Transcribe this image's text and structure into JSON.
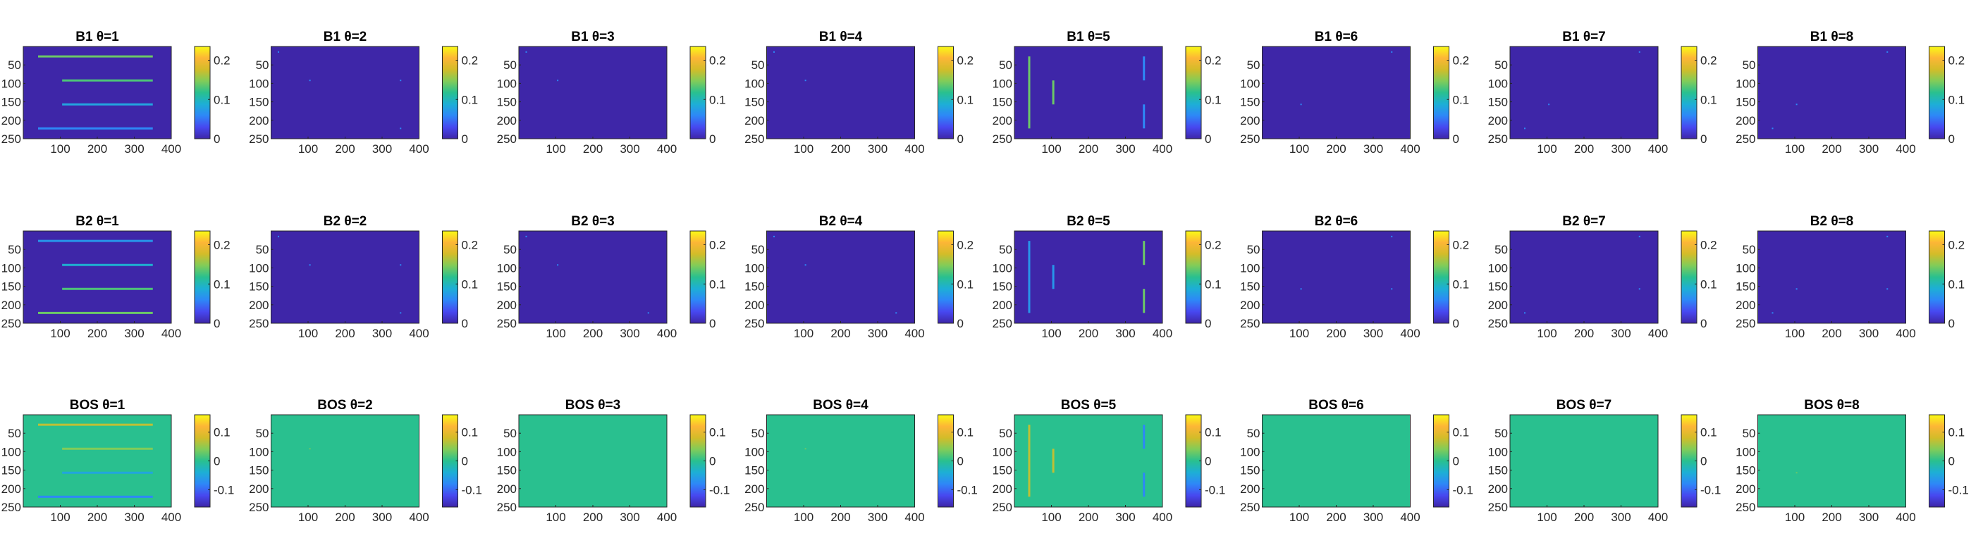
{
  "figure": {
    "rows": [
      {
        "prefix": "B1",
        "panels": [
          "B1 θ=1",
          "B1 θ=2",
          "B1 θ=3",
          "B1 θ=4",
          "B1 θ=5",
          "B1 θ=6",
          "B1 θ=7",
          "B1 θ=8"
        ],
        "colorbar_ticks": [
          "0.2",
          "0.1",
          "0"
        ],
        "colorbar_values": [
          0.2,
          0.1,
          0
        ],
        "clim": [
          0,
          0.235
        ]
      },
      {
        "prefix": "B2",
        "panels": [
          "B2 θ=1",
          "B2 θ=2",
          "B2 θ=3",
          "B2 θ=4",
          "B2 θ=5",
          "B2 θ=6",
          "B2 θ=7",
          "B2 θ=8"
        ],
        "colorbar_ticks": [
          "0.2",
          "0.1",
          "0"
        ],
        "colorbar_values": [
          0.2,
          0.1,
          0
        ],
        "clim": [
          0,
          0.235
        ]
      },
      {
        "prefix": "BOS",
        "panels": [
          "BOS θ=1",
          "BOS θ=2",
          "BOS θ=3",
          "BOS θ=4",
          "BOS θ=5",
          "BOS θ=6",
          "BOS θ=7",
          "BOS θ=8"
        ],
        "colorbar_ticks": [
          "0.1",
          "0",
          "-0.1"
        ],
        "colorbar_values": [
          0.1,
          0,
          -0.1
        ],
        "clim": [
          -0.16,
          0.16
        ]
      }
    ],
    "x_ticks": [
      "100",
      "200",
      "300",
      "400"
    ],
    "x_tick_values": [
      100,
      200,
      300,
      400
    ],
    "y_ticks": [
      "50",
      "100",
      "150",
      "200",
      "250"
    ],
    "y_tick_values": [
      50,
      100,
      150,
      200,
      250
    ],
    "xlim": [
      0,
      400
    ],
    "ylim": [
      0,
      250
    ],
    "colormap": "parula",
    "colormap_stops": [
      "#3e26a8",
      "#4748f0",
      "#2e87f7",
      "#1dafd6",
      "#29c08f",
      "#81cc59",
      "#d3bc29",
      "#fdb636",
      "#f9fb15"
    ]
  },
  "chart_data": {
    "type": "heatmap",
    "layout": "3 rows x 8 columns of image panels with colorbars",
    "xlim": [
      0,
      400
    ],
    "ylim": [
      250,
      0
    ],
    "features": [
      {
        "row": 0,
        "panel": 0,
        "kind": "h",
        "y": 27,
        "x0": 40,
        "x1": 350,
        "value": 0.14
      },
      {
        "row": 0,
        "panel": 0,
        "kind": "h",
        "y": 92,
        "x0": 105,
        "x1": 350,
        "value": 0.13
      },
      {
        "row": 0,
        "panel": 0,
        "kind": "h",
        "y": 157,
        "x0": 105,
        "x1": 350,
        "value": 0.08
      },
      {
        "row": 0,
        "panel": 0,
        "kind": "h",
        "y": 222,
        "x0": 40,
        "x1": 350,
        "value": 0.06
      },
      {
        "row": 0,
        "panel": 4,
        "kind": "v",
        "x": 40,
        "y0": 27,
        "y1": 222,
        "value": 0.14
      },
      {
        "row": 0,
        "panel": 4,
        "kind": "v",
        "x": 105,
        "y0": 92,
        "y1": 157,
        "value": 0.14
      },
      {
        "row": 0,
        "panel": 4,
        "kind": "v",
        "x": 350,
        "y0": 27,
        "y1": 92,
        "value": 0.06
      },
      {
        "row": 0,
        "panel": 4,
        "kind": "v",
        "x": 350,
        "y0": 157,
        "y1": 222,
        "value": 0.06
      },
      {
        "row": 1,
        "panel": 0,
        "kind": "h",
        "y": 27,
        "x0": 40,
        "x1": 350,
        "value": 0.07
      },
      {
        "row": 1,
        "panel": 0,
        "kind": "h",
        "y": 92,
        "x0": 105,
        "x1": 350,
        "value": 0.09
      },
      {
        "row": 1,
        "panel": 0,
        "kind": "h",
        "y": 157,
        "x0": 105,
        "x1": 350,
        "value": 0.13
      },
      {
        "row": 1,
        "panel": 0,
        "kind": "h",
        "y": 222,
        "x0": 40,
        "x1": 350,
        "value": 0.14
      },
      {
        "row": 1,
        "panel": 4,
        "kind": "v",
        "x": 40,
        "y0": 27,
        "y1": 222,
        "value": 0.07
      },
      {
        "row": 1,
        "panel": 4,
        "kind": "v",
        "x": 105,
        "y0": 92,
        "y1": 157,
        "value": 0.07
      },
      {
        "row": 1,
        "panel": 4,
        "kind": "v",
        "x": 350,
        "y0": 27,
        "y1": 92,
        "value": 0.14
      },
      {
        "row": 1,
        "panel": 4,
        "kind": "v",
        "x": 350,
        "y0": 157,
        "y1": 222,
        "value": 0.14
      },
      {
        "row": 2,
        "panel": 0,
        "kind": "h",
        "y": 27,
        "x0": 40,
        "x1": 350,
        "value": 0.07
      },
      {
        "row": 2,
        "panel": 0,
        "kind": "h",
        "y": 92,
        "x0": 105,
        "x1": 350,
        "value": 0.04
      },
      {
        "row": 2,
        "panel": 0,
        "kind": "h",
        "y": 157,
        "x0": 105,
        "x1": 350,
        "value": -0.05
      },
      {
        "row": 2,
        "panel": 0,
        "kind": "h",
        "y": 222,
        "x0": 40,
        "x1": 350,
        "value": -0.08
      },
      {
        "row": 2,
        "panel": 4,
        "kind": "v",
        "x": 40,
        "y0": 27,
        "y1": 222,
        "value": 0.07
      },
      {
        "row": 2,
        "panel": 4,
        "kind": "v",
        "x": 105,
        "y0": 92,
        "y1": 157,
        "value": 0.07
      },
      {
        "row": 2,
        "panel": 4,
        "kind": "v",
        "x": 350,
        "y0": 27,
        "y1": 92,
        "value": -0.08
      },
      {
        "row": 2,
        "panel": 4,
        "kind": "v",
        "x": 350,
        "y0": 157,
        "y1": 222,
        "value": -0.08
      }
    ],
    "specks": [
      {
        "row": 0,
        "panel": 1,
        "points": [
          [
            20,
            15
          ],
          [
            105,
            92
          ],
          [
            350,
            92
          ],
          [
            350,
            222
          ]
        ],
        "value": 0.06
      },
      {
        "row": 0,
        "panel": 2,
        "points": [
          [
            20,
            15
          ],
          [
            105,
            92
          ]
        ],
        "value": 0.06
      },
      {
        "row": 0,
        "panel": 3,
        "points": [
          [
            20,
            15
          ],
          [
            105,
            92
          ]
        ],
        "value": 0.06
      },
      {
        "row": 0,
        "panel": 5,
        "points": [
          [
            105,
            157
          ],
          [
            350,
            15
          ]
        ],
        "value": 0.06
      },
      {
        "row": 0,
        "panel": 6,
        "points": [
          [
            40,
            222
          ],
          [
            105,
            157
          ],
          [
            350,
            15
          ]
        ],
        "value": 0.06
      },
      {
        "row": 0,
        "panel": 7,
        "points": [
          [
            40,
            222
          ],
          [
            105,
            157
          ],
          [
            350,
            15
          ]
        ],
        "value": 0.06
      },
      {
        "row": 1,
        "panel": 1,
        "points": [
          [
            20,
            15
          ],
          [
            105,
            92
          ],
          [
            350,
            92
          ],
          [
            350,
            222
          ]
        ],
        "value": 0.06
      },
      {
        "row": 1,
        "panel": 2,
        "points": [
          [
            20,
            15
          ],
          [
            105,
            92
          ],
          [
            350,
            222
          ]
        ],
        "value": 0.06
      },
      {
        "row": 1,
        "panel": 3,
        "points": [
          [
            20,
            15
          ],
          [
            105,
            92
          ],
          [
            350,
            222
          ]
        ],
        "value": 0.06
      },
      {
        "row": 1,
        "panel": 5,
        "points": [
          [
            105,
            157
          ],
          [
            350,
            15
          ],
          [
            350,
            157
          ]
        ],
        "value": 0.06
      },
      {
        "row": 1,
        "panel": 6,
        "points": [
          [
            40,
            222
          ],
          [
            350,
            15
          ],
          [
            350,
            157
          ]
        ],
        "value": 0.06
      },
      {
        "row": 1,
        "panel": 7,
        "points": [
          [
            40,
            222
          ],
          [
            105,
            157
          ],
          [
            350,
            15
          ],
          [
            350,
            157
          ]
        ],
        "value": 0.06
      },
      {
        "row": 2,
        "panel": 1,
        "points": [
          [
            105,
            92
          ]
        ],
        "value": 0.03
      },
      {
        "row": 2,
        "panel": 3,
        "points": [
          [
            105,
            92
          ]
        ],
        "value": 0.03
      },
      {
        "row": 2,
        "panel": 7,
        "points": [
          [
            105,
            157
          ]
        ],
        "value": 0.03
      }
    ]
  }
}
